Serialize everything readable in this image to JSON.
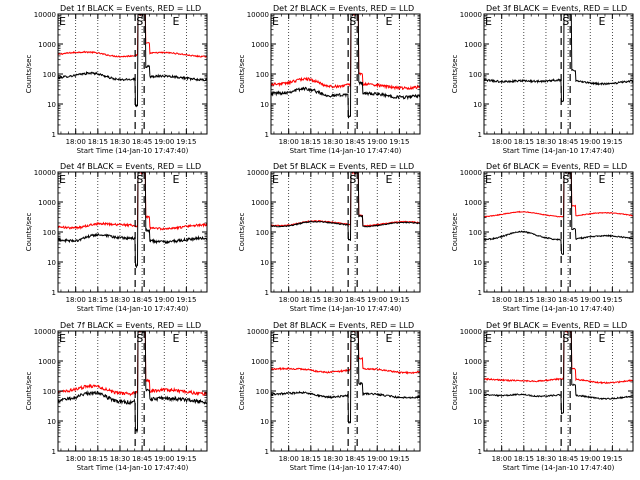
{
  "figure": {
    "layout": "3x3 grid",
    "colors": {
      "events": "#000000",
      "lld": "#ff0000",
      "markers": "#000000",
      "background": "#ffffff"
    },
    "marker_letters": {
      "start": "E",
      "saa": "S",
      "end": "E"
    }
  },
  "chart_data": [
    {
      "type": "line",
      "title": "Det 1f BLACK = Events, RED = LLD",
      "ylabel": "Counts/sec",
      "xlabel": "Start Time (14-Jan-10 17:47:40)",
      "x_tick_labels": [
        "18:00",
        "18:15",
        "18:30",
        "18:45",
        "19:00",
        "19:15"
      ],
      "y_tick_labels": [
        "10000",
        "1000",
        "100",
        "10",
        "1"
      ],
      "yscale": "log",
      "ylim": [
        1,
        10000
      ],
      "x_range_minutes_since_start": [
        0,
        101
      ],
      "dashed_lines_minutes_since_start": [
        52.3,
        58.4
      ],
      "grid": "dotted vertical at x ticks",
      "annotations": [
        "E",
        "S",
        "E"
      ],
      "series": [
        {
          "color": "#ff0000",
          "style": {
            "base": 450,
            "bump": 40,
            "noise": 0.05,
            "dip": 1
          }
        },
        {
          "color": "#000000",
          "style": {
            "base": 75,
            "bump": 25,
            "noise": 0.08,
            "dip": 8
          }
        }
      ]
    },
    {
      "type": "line",
      "title": "Det 2f BLACK = Events, RED = LLD",
      "ylabel": "Counts/sec",
      "xlabel": "Start Time (14-Jan-10 17:47:40)",
      "x_tick_labels": [
        "18:00",
        "18:15",
        "18:30",
        "18:45",
        "19:00",
        "19:15"
      ],
      "y_tick_labels": [
        "10000",
        "1000",
        "100",
        "10",
        "1"
      ],
      "yscale": "log",
      "ylim": [
        1,
        10000
      ],
      "x_range_minutes_since_start": [
        0,
        101
      ],
      "dashed_lines_minutes_since_start": [
        52.3,
        58.4
      ],
      "grid": "dotted vertical at x ticks",
      "annotations": [
        "E",
        "S",
        "E"
      ],
      "series": [
        {
          "color": "#ff0000",
          "style": {
            "base": 40,
            "bump": 35,
            "noise": 0.1,
            "dip": 1
          }
        },
        {
          "color": "#000000",
          "style": {
            "base": 20,
            "bump": 15,
            "noise": 0.12,
            "dip": 6
          }
        }
      ]
    },
    {
      "type": "line",
      "title": "Det 3f BLACK = Events, RED = LLD",
      "ylabel": "Counts/sec",
      "xlabel": "Start Time (14-Jan-10 17:47:40)",
      "x_tick_labels": [
        "18:00",
        "18:15",
        "18:30",
        "18:45",
        "19:00",
        "19:15"
      ],
      "y_tick_labels": [
        "10000",
        "1000",
        "100",
        "10",
        "1"
      ],
      "yscale": "log",
      "ylim": [
        1,
        10000
      ],
      "x_range_minutes_since_start": [
        0,
        101
      ],
      "dashed_lines_minutes_since_start": [
        52.3,
        58.4
      ],
      "grid": "dotted vertical at x ticks",
      "annotations": [
        "E",
        "S",
        "E"
      ],
      "series": [
        {
          "color": "#000000",
          "style": {
            "base": 55,
            "bump": 15,
            "noise": 0.07,
            "dip": 5
          }
        }
      ]
    },
    {
      "type": "line",
      "title": "Det 4f BLACK = Events, RED = LLD",
      "ylabel": "Counts/sec",
      "xlabel": "Start Time (14-Jan-10 17:47:40)",
      "x_tick_labels": [
        "18:00",
        "18:15",
        "18:30",
        "18:45",
        "19:00",
        "19:15"
      ],
      "y_tick_labels": [
        "10000",
        "1000",
        "100",
        "10",
        "1"
      ],
      "yscale": "log",
      "ylim": [
        1,
        10000
      ],
      "x_range_minutes_since_start": [
        0,
        101
      ],
      "dashed_lines_minutes_since_start": [
        52.3,
        58.4
      ],
      "grid": "dotted vertical at x ticks",
      "annotations": [
        "E",
        "S",
        "E"
      ],
      "series": [
        {
          "color": "#ff0000",
          "style": {
            "base": 150,
            "bump": 50,
            "noise": 0.08,
            "dip": 1
          }
        },
        {
          "color": "#000000",
          "style": {
            "base": 55,
            "bump": 30,
            "noise": 0.1,
            "dip": 8
          }
        }
      ]
    },
    {
      "type": "line",
      "title": "Det 5f BLACK = Events, RED = LLD",
      "ylabel": "Counts/sec",
      "xlabel": "Start Time (14-Jan-10 17:47:40)",
      "x_tick_labels": [
        "18:00",
        "18:15",
        "18:30",
        "18:45",
        "19:00",
        "19:15"
      ],
      "y_tick_labels": [
        "10000",
        "1000",
        "100",
        "10",
        "1"
      ],
      "yscale": "log",
      "ylim": [
        1,
        10000
      ],
      "x_range_minutes_since_start": [
        0,
        101
      ],
      "dashed_lines_minutes_since_start": [
        52.3,
        58.4
      ],
      "grid": "dotted vertical at x ticks",
      "annotations": [
        "E",
        "S",
        "E"
      ],
      "series": [
        {
          "color": "#ff0000",
          "style": {
            "base": 190,
            "bump": 20,
            "noise": 0.04,
            "dip": 1
          }
        },
        {
          "color": "#000000",
          "style": {
            "base": 180,
            "bump": 20,
            "noise": 0.04,
            "dip": 3
          }
        }
      ]
    },
    {
      "type": "line",
      "title": "Det 6f BLACK = Events, RED = LLD",
      "ylabel": "Counts/sec",
      "xlabel": "Start Time (14-Jan-10 17:47:40)",
      "x_tick_labels": [
        "18:00",
        "18:15",
        "18:30",
        "18:45",
        "19:00",
        "19:15"
      ],
      "y_tick_labels": [
        "10000",
        "1000",
        "100",
        "10",
        "1"
      ],
      "yscale": "log",
      "ylim": [
        1,
        10000
      ],
      "x_range_minutes_since_start": [
        0,
        101
      ],
      "dashed_lines_minutes_since_start": [
        52.3,
        58.4
      ],
      "grid": "dotted vertical at x ticks",
      "annotations": [
        "E",
        "S",
        "E"
      ],
      "series": [
        {
          "color": "#ff0000",
          "style": {
            "base": 380,
            "bump": 30,
            "noise": 0.03,
            "dip": 1
          }
        },
        {
          "color": "#000000",
          "style": {
            "base": 65,
            "bump": 25,
            "noise": 0.05,
            "dip": 3
          }
        }
      ]
    },
    {
      "type": "line",
      "title": "Det 7f BLACK = Events, RED = LLD",
      "ylabel": "Counts/sec",
      "xlabel": "Start Time (14-Jan-10 17:47:40)",
      "x_tick_labels": [
        "18:00",
        "18:15",
        "18:30",
        "18:45",
        "19:00",
        "19:15"
      ],
      "y_tick_labels": [
        "10000",
        "1000",
        "100",
        "10",
        "1"
      ],
      "yscale": "log",
      "ylim": [
        1,
        10000
      ],
      "x_range_minutes_since_start": [
        0,
        101
      ],
      "dashed_lines_minutes_since_start": [
        52.3,
        58.4
      ],
      "grid": "dotted vertical at x ticks",
      "annotations": [
        "E",
        "S",
        "E"
      ],
      "series": [
        {
          "color": "#ff0000",
          "style": {
            "base": 95,
            "bump": 40,
            "noise": 0.12,
            "dip": 1
          }
        },
        {
          "color": "#000000",
          "style": {
            "base": 50,
            "bump": 30,
            "noise": 0.14,
            "dip": 10
          }
        }
      ]
    },
    {
      "type": "line",
      "title": "Det 8f BLACK = Events, RED = LLD",
      "ylabel": "Counts/sec",
      "xlabel": "Start Time (14-Jan-10 17:47:40)",
      "x_tick_labels": [
        "18:00",
        "18:15",
        "18:30",
        "18:45",
        "19:00",
        "19:15"
      ],
      "y_tick_labels": [
        "10000",
        "1000",
        "100",
        "10",
        "1"
      ],
      "yscale": "log",
      "ylim": [
        1,
        10000
      ],
      "x_range_minutes_since_start": [
        0,
        101
      ],
      "dashed_lines_minutes_since_start": [
        52.3,
        58.4
      ],
      "grid": "dotted vertical at x ticks",
      "annotations": [
        "E",
        "S",
        "E"
      ],
      "series": [
        {
          "color": "#ff0000",
          "style": {
            "base": 480,
            "bump": 60,
            "noise": 0.06,
            "dip": 1
          }
        },
        {
          "color": "#000000",
          "style": {
            "base": 70,
            "bump": 20,
            "noise": 0.07,
            "dip": 8
          }
        }
      ]
    },
    {
      "type": "line",
      "title": "Det 9f BLACK = Events, RED = LLD",
      "ylabel": "Counts/sec",
      "xlabel": "Start Time (14-Jan-10 17:47:40)",
      "x_tick_labels": [
        "18:00",
        "18:15",
        "18:30",
        "18:45",
        "19:00",
        "19:15"
      ],
      "y_tick_labels": [
        "10000",
        "1000",
        "100",
        "10",
        "1"
      ],
      "yscale": "log",
      "ylim": [
        1,
        10000
      ],
      "x_range_minutes_since_start": [
        0,
        101
      ],
      "dashed_lines_minutes_since_start": [
        52.3,
        58.4
      ],
      "grid": "dotted vertical at x ticks",
      "annotations": [
        "E",
        "S",
        "E"
      ],
      "series": [
        {
          "color": "#ff0000",
          "style": {
            "base": 220,
            "bump": 40,
            "noise": 0.05,
            "dip": 1
          }
        },
        {
          "color": "#000000",
          "style": {
            "base": 65,
            "bump": 25,
            "noise": 0.05,
            "dip": 4
          }
        }
      ]
    }
  ]
}
